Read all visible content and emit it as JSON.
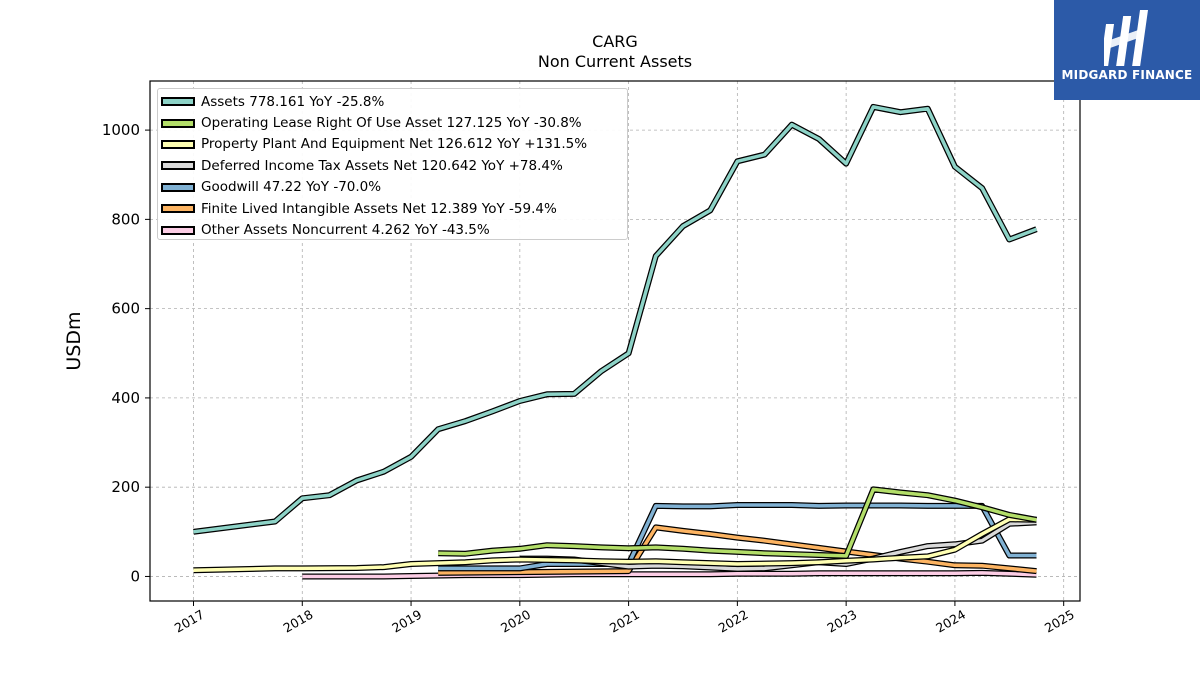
{
  "chart_data": {
    "type": "line",
    "title": "CARG",
    "subtitle": "Non Current  Assets",
    "ylabel": "USDm",
    "xlabel": "",
    "xlim": [
      2016.6,
      2025.15
    ],
    "ylim": [
      -55,
      1110
    ],
    "x_ticks": [
      2017,
      2018,
      2019,
      2020,
      2021,
      2022,
      2023,
      2024,
      2025
    ],
    "x_tick_labels": [
      "2017",
      "2018",
      "2019",
      "2020",
      "2021",
      "2022",
      "2023",
      "2024",
      "2025"
    ],
    "y_ticks": [
      0,
      200,
      400,
      600,
      800,
      1000
    ],
    "y_tick_labels": [
      "0",
      "200",
      "400",
      "600",
      "800",
      "1000"
    ],
    "grid": true,
    "legend_position": "top-left",
    "series": [
      {
        "name": "Assets",
        "legend": "Assets  778.161 YoY -25.8%",
        "color": "#8dd3c7",
        "points": [
          [
            2017.0,
            100
          ],
          [
            2017.75,
            123
          ],
          [
            2018.0,
            175
          ],
          [
            2018.25,
            182
          ],
          [
            2018.5,
            215
          ],
          [
            2018.75,
            235
          ],
          [
            2019.0,
            268
          ],
          [
            2019.25,
            330
          ],
          [
            2019.5,
            348
          ],
          [
            2019.75,
            370
          ],
          [
            2020.0,
            393
          ],
          [
            2020.25,
            408
          ],
          [
            2020.5,
            409
          ],
          [
            2020.75,
            460
          ],
          [
            2021.0,
            500
          ],
          [
            2021.25,
            718
          ],
          [
            2021.5,
            785
          ],
          [
            2021.75,
            820
          ],
          [
            2022.0,
            930
          ],
          [
            2022.25,
            945
          ],
          [
            2022.5,
            1012
          ],
          [
            2022.75,
            980
          ],
          [
            2023.0,
            925
          ],
          [
            2023.25,
            1052
          ],
          [
            2023.5,
            1040
          ],
          [
            2023.75,
            1048
          ],
          [
            2024.0,
            918
          ],
          [
            2024.25,
            870
          ],
          [
            2024.5,
            755
          ],
          [
            2024.75,
            778
          ]
        ]
      },
      {
        "name": "Operating Lease Right Of Use Asset",
        "legend": "Operating Lease Right Of Use Asset  127.125 YoY -30.8%",
        "color": "#b3de69",
        "points": [
          [
            2019.25,
            52
          ],
          [
            2019.5,
            51
          ],
          [
            2019.75,
            58
          ],
          [
            2020.0,
            62
          ],
          [
            2020.25,
            70
          ],
          [
            2020.5,
            68
          ],
          [
            2020.75,
            65
          ],
          [
            2021.0,
            63
          ],
          [
            2021.25,
            65
          ],
          [
            2021.5,
            62
          ],
          [
            2021.75,
            58
          ],
          [
            2022.0,
            55
          ],
          [
            2022.25,
            52
          ],
          [
            2022.5,
            50
          ],
          [
            2022.75,
            48
          ],
          [
            2023.0,
            46
          ],
          [
            2023.25,
            195
          ],
          [
            2023.5,
            188
          ],
          [
            2023.75,
            182
          ],
          [
            2024.0,
            170
          ],
          [
            2024.25,
            155
          ],
          [
            2024.5,
            138
          ],
          [
            2024.75,
            127
          ]
        ]
      },
      {
        "name": "Property Plant And Equipment Net",
        "legend": "Property Plant And Equipment Net  126.612 YoY +131.5%",
        "color": "#ffffb3",
        "points": [
          [
            2017.0,
            14
          ],
          [
            2017.75,
            18
          ],
          [
            2018.0,
            18
          ],
          [
            2018.5,
            19
          ],
          [
            2018.75,
            21
          ],
          [
            2019.0,
            28
          ],
          [
            2019.5,
            32
          ],
          [
            2019.75,
            36
          ],
          [
            2020.0,
            38
          ],
          [
            2020.5,
            36
          ],
          [
            2020.75,
            34
          ],
          [
            2021.0,
            33
          ],
          [
            2021.25,
            34
          ],
          [
            2021.5,
            32
          ],
          [
            2021.75,
            30
          ],
          [
            2022.0,
            28
          ],
          [
            2022.5,
            30
          ],
          [
            2022.75,
            32
          ],
          [
            2023.0,
            35
          ],
          [
            2023.25,
            38
          ],
          [
            2023.5,
            42
          ],
          [
            2023.75,
            45
          ],
          [
            2024.0,
            60
          ],
          [
            2024.25,
            95
          ],
          [
            2024.5,
            128
          ],
          [
            2024.75,
            127
          ]
        ]
      },
      {
        "name": "Deferred Income Tax Assets Net",
        "legend": "Deferred Income Tax Assets Net  120.642 YoY +78.4%",
        "color": "#d9d9d9",
        "points": [
          [
            2020.0,
            40
          ],
          [
            2020.25,
            40
          ],
          [
            2020.5,
            38
          ],
          [
            2020.75,
            30
          ],
          [
            2021.0,
            22
          ],
          [
            2021.25,
            24
          ],
          [
            2021.5,
            23
          ],
          [
            2021.75,
            20
          ],
          [
            2022.0,
            17
          ],
          [
            2022.25,
            18
          ],
          [
            2022.5,
            25
          ],
          [
            2022.75,
            32
          ],
          [
            2023.0,
            28
          ],
          [
            2023.25,
            40
          ],
          [
            2023.5,
            55
          ],
          [
            2023.75,
            68
          ],
          [
            2024.0,
            72
          ],
          [
            2024.25,
            80
          ],
          [
            2024.5,
            118
          ],
          [
            2024.75,
            121
          ]
        ]
      },
      {
        "name": "Goodwill",
        "legend": "Goodwill  47.22 YoY -70.0%",
        "color": "#80b1d3",
        "points": [
          [
            2019.25,
            18
          ],
          [
            2020.0,
            18
          ],
          [
            2020.25,
            28
          ],
          [
            2020.5,
            28
          ],
          [
            2020.75,
            28
          ],
          [
            2021.0,
            28
          ],
          [
            2021.25,
            158
          ],
          [
            2021.5,
            157
          ],
          [
            2021.75,
            157
          ],
          [
            2022.0,
            160
          ],
          [
            2022.5,
            160
          ],
          [
            2022.75,
            158
          ],
          [
            2023.0,
            159
          ],
          [
            2023.25,
            159
          ],
          [
            2023.5,
            159
          ],
          [
            2023.75,
            158
          ],
          [
            2024.0,
            158
          ],
          [
            2024.25,
            158
          ],
          [
            2024.5,
            47
          ],
          [
            2024.75,
            47
          ]
        ]
      },
      {
        "name": "Finite Lived Intangible Assets Net",
        "legend": "Finite Lived Intangible Assets Net  12.389 YoY -59.4%",
        "color": "#fdb462",
        "points": [
          [
            2019.25,
            8
          ],
          [
            2021.0,
            12
          ],
          [
            2021.25,
            110
          ],
          [
            2021.5,
            102
          ],
          [
            2021.75,
            95
          ],
          [
            2022.0,
            87
          ],
          [
            2022.25,
            80
          ],
          [
            2022.5,
            72
          ],
          [
            2022.75,
            64
          ],
          [
            2023.0,
            56
          ],
          [
            2023.25,
            48
          ],
          [
            2023.5,
            40
          ],
          [
            2023.75,
            33
          ],
          [
            2024.0,
            25
          ],
          [
            2024.25,
            24
          ],
          [
            2024.5,
            18
          ],
          [
            2024.75,
            12
          ]
        ]
      },
      {
        "name": "Other Assets Noncurrent",
        "legend": "Other Assets Noncurrent  4.262 YoY -43.5%",
        "color": "#fccde5",
        "points": [
          [
            2018.0,
            0
          ],
          [
            2018.75,
            0
          ],
          [
            2019.0,
            1
          ],
          [
            2019.5,
            3
          ],
          [
            2020.0,
            3
          ],
          [
            2020.5,
            5
          ],
          [
            2021.0,
            5
          ],
          [
            2021.5,
            5
          ],
          [
            2021.75,
            5
          ],
          [
            2022.0,
            6
          ],
          [
            2022.5,
            6
          ],
          [
            2022.75,
            7
          ],
          [
            2023.0,
            7
          ],
          [
            2023.5,
            7
          ],
          [
            2024.0,
            7
          ],
          [
            2024.25,
            8
          ],
          [
            2024.5,
            6
          ],
          [
            2024.75,
            4
          ]
        ]
      }
    ]
  },
  "brand": {
    "name": "MIDGARD FINANCE",
    "background": "#2c5aa8"
  }
}
